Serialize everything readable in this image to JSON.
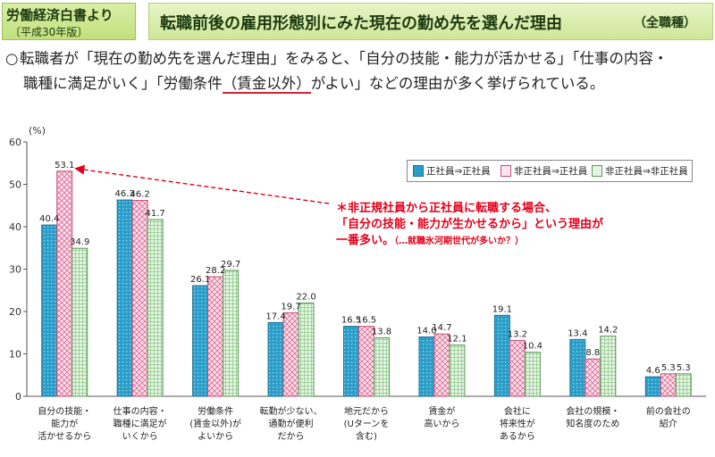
{
  "header": {
    "source_title": "労働経済白書より",
    "source_year": "〔平成30年版〕",
    "main_title": "転職前後の雇用形態別にみた現在の勤め先を選んだ理由",
    "title_note": "（全職種）"
  },
  "summary": {
    "bullet": "○",
    "line1": "転職者が「現在の勤め先を選んだ理由」をみると、「自分の技能・能力が活かせる」「仕事の内容・",
    "line2_before": "職種に満足がいく」「労働条件",
    "line2_underlined": "（賃金以外）",
    "line2_after": "がよい」などの理由が多く挙げられている。"
  },
  "annotation": {
    "line1": "＊非正規社員から正社員に転職する場合、",
    "line2": "「自分の技能・能力が生かせるから」という理由が",
    "line3_main": "一番多い。",
    "line3_small": "（…就職氷河期世代が多いか？）",
    "color": "#e2001a"
  },
  "chart_data": {
    "type": "bar",
    "yunit": "(%)",
    "ylim": [
      0,
      60
    ],
    "yticks": [
      0,
      10,
      20,
      30,
      40,
      50,
      60
    ],
    "grid": false,
    "legend_position": "top-right",
    "categories": [
      [
        "自分の技能・",
        "能力が",
        "活かせるから"
      ],
      [
        "仕事の内容・",
        "職種に満足が",
        "いくから"
      ],
      [
        "労働条件",
        "(賃金以外)が",
        "よいから"
      ],
      [
        "転勤が少ない、",
        "通勤が便利",
        "だから"
      ],
      [
        "地元だから",
        "(Uターンを",
        "含む)"
      ],
      [
        "賃金が",
        "高いから"
      ],
      [
        "会社に",
        "将来性が",
        "あるから"
      ],
      [
        "会社の規模・",
        "知名度のため"
      ],
      [
        "前の会社の",
        "紹介"
      ]
    ],
    "series": [
      {
        "name": "正社員⇒正社員",
        "pattern": "dotted-blue",
        "values": [
          40.4,
          46.3,
          26.1,
          17.4,
          16.5,
          14.0,
          19.1,
          13.4,
          4.6
        ]
      },
      {
        "name": "非正社員⇒正社員",
        "pattern": "checked-pink",
        "values": [
          53.1,
          46.2,
          28.2,
          19.7,
          16.5,
          14.7,
          13.2,
          8.8,
          5.3
        ]
      },
      {
        "name": "非正社員⇒非正社員",
        "pattern": "grid-green",
        "values": [
          34.9,
          41.7,
          29.7,
          22.0,
          13.8,
          12.1,
          10.4,
          14.2,
          5.3
        ]
      }
    ],
    "value_labels": [
      [
        "40.4",
        "46.3",
        "26.1",
        "17.4",
        "16.5",
        "14.0",
        "19.1",
        "13.4",
        "4.6"
      ],
      [
        "53.1",
        "46.2",
        "28.2",
        "19.7",
        "16.5",
        "14.7",
        "13.2",
        "8.8",
        "5.3"
      ],
      [
        "34.9",
        "41.7",
        "29.7",
        "22.0",
        "13.8",
        "12.1",
        "10.4",
        "14.2",
        "5.3"
      ]
    ]
  }
}
